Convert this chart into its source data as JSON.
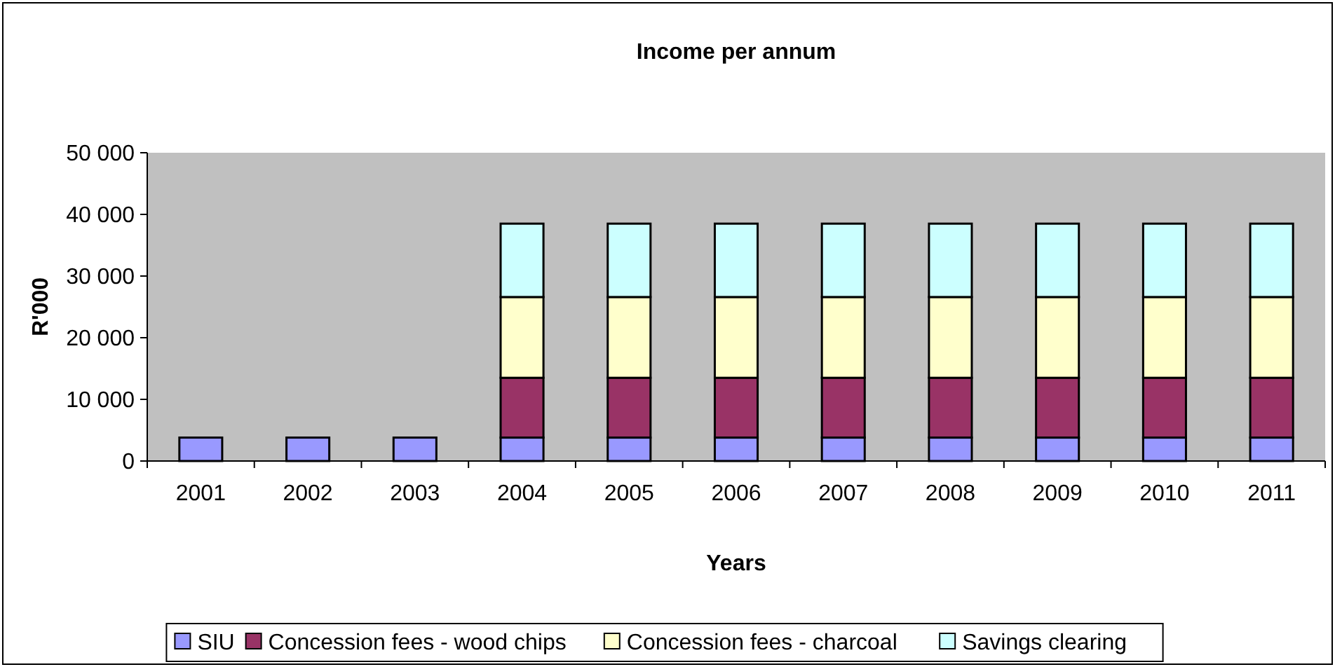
{
  "chart_data": {
    "type": "bar",
    "title": "Income per annum",
    "xlabel": "Years",
    "ylabel": "R'000",
    "categories": [
      "2001",
      "2002",
      "2003",
      "2004",
      "2005",
      "2006",
      "2007",
      "2008",
      "2009",
      "2010",
      "2011"
    ],
    "stacked": true,
    "series": [
      {
        "name": "SIU",
        "color": "#9999ff",
        "values": [
          3800,
          3800,
          3800,
          3800,
          3800,
          3800,
          3800,
          3800,
          3800,
          3800,
          3800
        ]
      },
      {
        "name": "Concession fees - wood chips",
        "color": "#993366",
        "values": [
          0,
          0,
          0,
          9700,
          9700,
          9700,
          9700,
          9700,
          9700,
          9700,
          9700
        ]
      },
      {
        "name": "Concession fees - charcoal",
        "color": "#ffffcc",
        "values": [
          0,
          0,
          0,
          13100,
          13100,
          13100,
          13100,
          13100,
          13100,
          13100,
          13100
        ]
      },
      {
        "name": "Savings clearing",
        "color": "#ccffff",
        "values": [
          0,
          0,
          0,
          11900,
          11900,
          11900,
          11900,
          11900,
          11900,
          11900,
          11900
        ]
      }
    ],
    "ylim": [
      0,
      50000
    ],
    "yticks": [
      {
        "value": 0,
        "label": "0"
      },
      {
        "value": 10000,
        "label": "10 000"
      },
      {
        "value": 20000,
        "label": "20 000"
      },
      {
        "value": 30000,
        "label": "30 000"
      },
      {
        "value": 40000,
        "label": "40 000"
      },
      {
        "value": 50000,
        "label": "50 000"
      }
    ],
    "legend": "bottom"
  }
}
